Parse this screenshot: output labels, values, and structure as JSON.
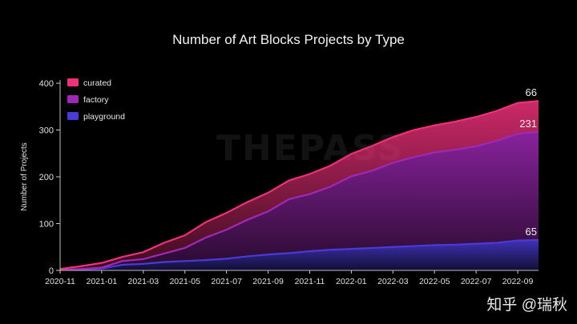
{
  "watermarks": {
    "center": "THEPASS",
    "corner": "知乎 @瑞秋"
  },
  "chart_data": {
    "type": "area",
    "stacked": true,
    "title": "Number of Art Blocks Projects by Type",
    "xlabel": "",
    "ylabel": "Number of Projects",
    "ylim": [
      0,
      400
    ],
    "yticks": [
      0,
      100,
      200,
      300,
      400
    ],
    "xticks": [
      "2020-11",
      "2021-01",
      "2021-03",
      "2021-05",
      "2021-07",
      "2021-09",
      "2021-11",
      "2022-01",
      "2022-03",
      "2022-05",
      "2022-07",
      "2022-09"
    ],
    "x": [
      "2020-11",
      "2020-12",
      "2021-01",
      "2021-02",
      "2021-03",
      "2021-04",
      "2021-05",
      "2021-06",
      "2021-07",
      "2021-08",
      "2021-09",
      "2021-10",
      "2021-11",
      "2021-12",
      "2022-01",
      "2022-02",
      "2022-03",
      "2022-04",
      "2022-05",
      "2022-06",
      "2022-07",
      "2022-08",
      "2022-09",
      "2022-10"
    ],
    "legend_position": "top-left",
    "series": [
      {
        "name": "playground",
        "color": "#4a3ad6",
        "final_label": "65",
        "values": [
          1,
          2,
          4,
          12,
          14,
          18,
          20,
          22,
          25,
          30,
          34,
          37,
          41,
          44,
          46,
          48,
          50,
          52,
          54,
          55,
          57,
          59,
          64,
          65
        ]
      },
      {
        "name": "factory",
        "color": "#a028b8",
        "final_label": "231",
        "values": [
          0,
          1,
          2,
          8,
          10,
          18,
          28,
          48,
          62,
          78,
          92,
          115,
          122,
          135,
          155,
          165,
          180,
          190,
          198,
          203,
          208,
          218,
          228,
          231
        ]
      },
      {
        "name": "curated",
        "color": "#f0307a",
        "final_label": "66",
        "values": [
          2,
          6,
          10,
          9,
          15,
          23,
          27,
          33,
          36,
          38,
          40,
          40,
          43,
          45,
          48,
          53,
          55,
          58,
          58,
          60,
          63,
          64,
          66,
          66
        ]
      }
    ]
  }
}
